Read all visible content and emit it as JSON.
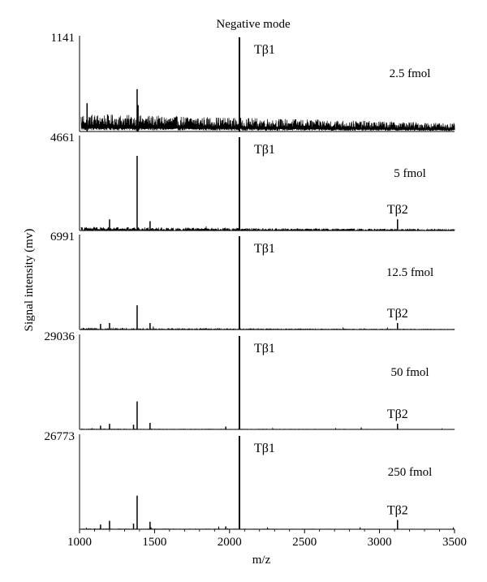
{
  "chart_data": {
    "type": "line",
    "title": "Negative mode",
    "xlabel": "m/z",
    "ylabel": "Signal intensity (mv)",
    "xlim": [
      1000,
      3500
    ],
    "x_ticks": [
      1000,
      1500,
      2000,
      2500,
      3000,
      3500
    ],
    "x_tick_labels": [
      "1000",
      "1500",
      "2000",
      "2500",
      "3000",
      "3500"
    ],
    "grid": false,
    "panels": [
      {
        "ymax_label": "1141",
        "concentration": "2.5 fmol",
        "noise": 0.18,
        "peaks": [
          {
            "mz": 2066,
            "rel": 1.0,
            "label": "Tβ1"
          },
          {
            "mz": 1384,
            "rel": 0.45
          },
          {
            "mz": 1390,
            "rel": 0.28
          },
          {
            "mz": 1050,
            "rel": 0.3
          }
        ]
      },
      {
        "ymax_label": "4661",
        "concentration": "5 fmol",
        "noise": 0.03,
        "peaks": [
          {
            "mz": 2066,
            "rel": 1.0,
            "label": "Tβ1"
          },
          {
            "mz": 1384,
            "rel": 0.8
          },
          {
            "mz": 1200,
            "rel": 0.12
          },
          {
            "mz": 1470,
            "rel": 0.1
          },
          {
            "mz": 3120,
            "rel": 0.12,
            "label": "Tβ2"
          }
        ]
      },
      {
        "ymax_label": "6991",
        "concentration": "12.5 fmol",
        "noise": 0.01,
        "peaks": [
          {
            "mz": 2066,
            "rel": 1.0,
            "label": "Tβ1"
          },
          {
            "mz": 1384,
            "rel": 0.26
          },
          {
            "mz": 1200,
            "rel": 0.07
          },
          {
            "mz": 1470,
            "rel": 0.07
          },
          {
            "mz": 1140,
            "rel": 0.06
          },
          {
            "mz": 3120,
            "rel": 0.07,
            "label": "Tβ2"
          }
        ]
      },
      {
        "ymax_label": "29036",
        "concentration": "50 fmol",
        "noise": 0.004,
        "peaks": [
          {
            "mz": 2066,
            "rel": 1.0,
            "label": "Tβ1"
          },
          {
            "mz": 1384,
            "rel": 0.3
          },
          {
            "mz": 1200,
            "rel": 0.06
          },
          {
            "mz": 1470,
            "rel": 0.07
          },
          {
            "mz": 1140,
            "rel": 0.04
          },
          {
            "mz": 1360,
            "rel": 0.05
          },
          {
            "mz": 1975,
            "rel": 0.03
          },
          {
            "mz": 3120,
            "rel": 0.06,
            "label": "Tβ2"
          }
        ]
      },
      {
        "ymax_label": "26773",
        "concentration": "250 fmol",
        "noise": 0.004,
        "peaks": [
          {
            "mz": 2066,
            "rel": 1.0,
            "label": "Tβ1"
          },
          {
            "mz": 1384,
            "rel": 0.36
          },
          {
            "mz": 1200,
            "rel": 0.09
          },
          {
            "mz": 1470,
            "rel": 0.08
          },
          {
            "mz": 1140,
            "rel": 0.05
          },
          {
            "mz": 1360,
            "rel": 0.06
          },
          {
            "mz": 1975,
            "rel": 0.03
          },
          {
            "mz": 3120,
            "rel": 0.1,
            "label": "Tβ2"
          }
        ]
      }
    ]
  }
}
